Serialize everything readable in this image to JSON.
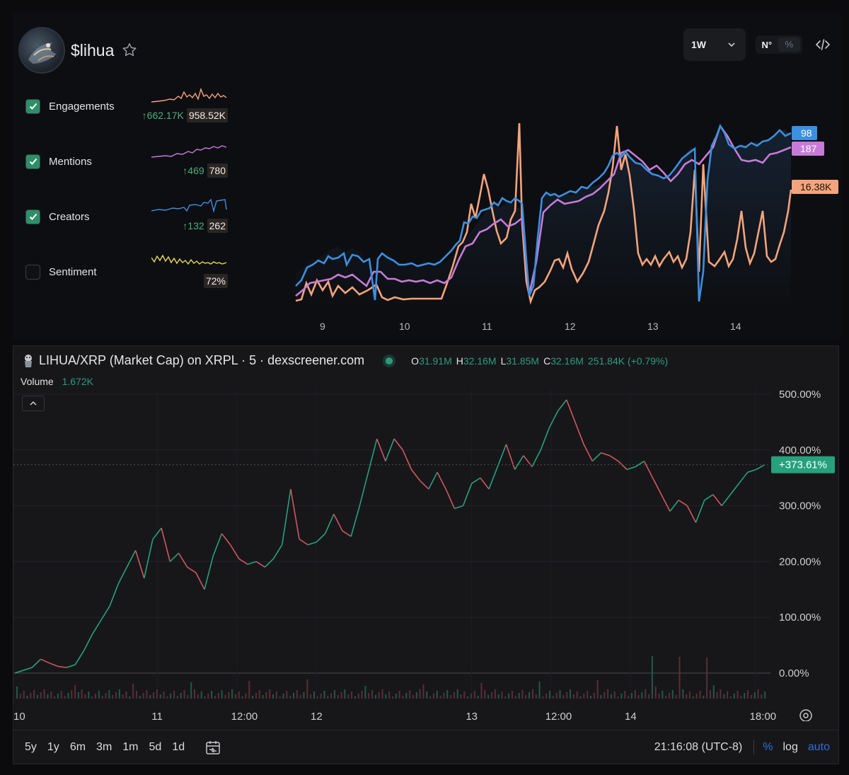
{
  "header": {
    "coin_title": "$lihua",
    "timeframe": "1W",
    "scale_n": "N°",
    "scale_pct": "%"
  },
  "metrics": [
    {
      "label": "Engagements",
      "checked": true,
      "delta": "↑662.17K",
      "value": "958.52K",
      "color": "#f4a47c"
    },
    {
      "label": "Mentions",
      "checked": true,
      "delta": "↑469",
      "value": "780",
      "color": "#c77bd8"
    },
    {
      "label": "Creators",
      "checked": true,
      "delta": "↑132",
      "value": "262",
      "color": "#3d8fe0"
    },
    {
      "label": "Sentiment",
      "checked": false,
      "delta": "",
      "value": "72%",
      "color": "#e8d85a"
    }
  ],
  "social_chart": {
    "x_ticks": [
      "9",
      "10",
      "11",
      "12",
      "13",
      "14"
    ],
    "end_labels": [
      {
        "series": "Creators",
        "text": "98",
        "color": "#3d8fe0"
      },
      {
        "series": "Mentions",
        "text": "187",
        "color": "#c77bd8"
      },
      {
        "series": "Engagements",
        "text": "16.38K",
        "color": "#f4a47c"
      }
    ]
  },
  "pair": {
    "title": "LIHUA/XRP (Market Cap) on XRPL · 5 · dexscreener.com",
    "ohlc": [
      {
        "k": "O",
        "v": "31.91M"
      },
      {
        "k": "H",
        "v": "32.16M"
      },
      {
        "k": "L",
        "v": "31.85M"
      },
      {
        "k": "C",
        "v": "32.16M"
      },
      {
        "k": "",
        "v": "251.84K (+0.79%)"
      }
    ],
    "volume_label": "Volume",
    "volume_value": "1.672K"
  },
  "chart_data": {
    "type": "line",
    "y_axis_ticks": [
      "500.00%",
      "400.00%",
      "300.00%",
      "200.00%",
      "100.00%",
      "0.00%"
    ],
    "ylim": [
      0,
      500
    ],
    "x_ticks": [
      "10",
      "11",
      "12:00",
      "12",
      "13",
      "12:00",
      "14",
      "18:00"
    ],
    "current_value_label": "+373.61%",
    "current_value": 373.61,
    "series": [
      {
        "values": [
          0,
          5,
          10,
          25,
          18,
          12,
          10,
          15,
          40,
          70,
          95,
          120,
          160,
          190,
          220,
          170,
          240,
          260,
          200,
          215,
          190,
          180,
          150,
          210,
          250,
          230,
          205,
          195,
          200,
          190,
          205,
          230,
          330,
          240,
          230,
          235,
          250,
          285,
          255,
          245,
          300,
          360,
          420,
          380,
          420,
          400,
          365,
          345,
          330,
          360,
          330,
          295,
          300,
          340,
          350,
          330,
          370,
          410,
          365,
          390,
          370,
          400,
          440,
          470,
          490,
          450,
          410,
          380,
          395,
          390,
          380,
          365,
          370,
          380,
          350,
          320,
          290,
          310,
          300,
          270,
          310,
          320,
          300,
          320,
          340,
          360,
          365,
          373.61
        ]
      }
    ]
  },
  "toolbar": {
    "ranges": [
      "5y",
      "1y",
      "6m",
      "3m",
      "1m",
      "5d",
      "1d"
    ],
    "clock": "21:16:08 (UTC-8)",
    "pct": "%",
    "log": "log",
    "auto": "auto"
  }
}
